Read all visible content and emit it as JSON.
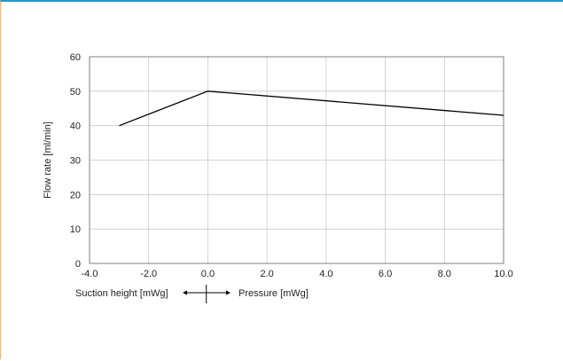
{
  "chart_data": {
    "type": "line",
    "title": "",
    "ylabel": "Flow rate [ml/min]",
    "xlabel_left": "Suction height [mWg]",
    "xlabel_right": "Pressure [mWg]",
    "xlim": [
      -4,
      10
    ],
    "ylim": [
      0,
      60
    ],
    "x_ticks": [
      -4,
      -2,
      0,
      2,
      4,
      6,
      8,
      10
    ],
    "x_tick_labels": [
      "-4.0",
      "-2.0",
      "0.0",
      "2.0",
      "4.0",
      "6.0",
      "8.0",
      "10.0"
    ],
    "y_ticks": [
      0,
      10,
      20,
      30,
      40,
      50,
      60
    ],
    "y_tick_labels": [
      "0",
      "10",
      "20",
      "30",
      "40",
      "50",
      "60"
    ],
    "grid": true,
    "legend": "none",
    "series": [
      {
        "x": [
          -3,
          0,
          10
        ],
        "y": [
          40,
          50,
          43
        ],
        "color": "#000000"
      }
    ],
    "colors": {
      "grid": "#c8c8c8",
      "axis": "#7f7f7f",
      "frame_top": "#1a9ad6",
      "frame_left": "#f0b37a"
    }
  }
}
